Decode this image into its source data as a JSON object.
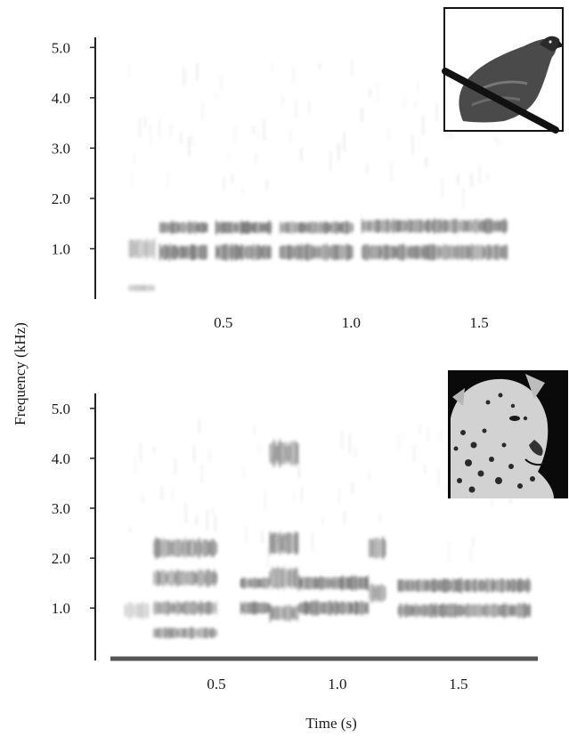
{
  "figure": {
    "ylabel": "Frequency (kHz)",
    "xlabel": "Time (s)"
  },
  "chart_data": [
    {
      "type": "heatmap",
      "title": "",
      "inset_image": "bird-photo",
      "xlabel": "",
      "ylabel": "Frequency (kHz)",
      "xlim": [
        0.0,
        1.75
      ],
      "ylim": [
        0.0,
        5.2
      ],
      "x_ticks": [
        0.5,
        1.0,
        1.5
      ],
      "x_tick_labels": [
        "0.5",
        "1.0",
        "1.5"
      ],
      "y_ticks": [
        1.0,
        2.0,
        3.0,
        4.0,
        5.0
      ],
      "y_tick_labels": [
        "1.0",
        "2.0",
        "3.0",
        "4.0",
        "5.0"
      ],
      "grid": false,
      "segments": [
        {
          "start": 0.13,
          "end": 0.23,
          "intensity": 0.45,
          "bands": [
            {
              "freq": 1.0,
              "width": 0.35
            },
            {
              "freq": 0.22,
              "width": 0.12
            }
          ]
        },
        {
          "start": 0.25,
          "end": 0.44,
          "intensity": 0.9,
          "bands": [
            {
              "freq": 0.93,
              "width": 0.28
            },
            {
              "freq": 1.42,
              "width": 0.22
            }
          ]
        },
        {
          "start": 0.47,
          "end": 0.69,
          "intensity": 0.95,
          "bands": [
            {
              "freq": 0.93,
              "width": 0.28
            },
            {
              "freq": 1.42,
              "width": 0.22
            }
          ]
        },
        {
          "start": 0.72,
          "end": 1.01,
          "intensity": 0.88,
          "bands": [
            {
              "freq": 0.93,
              "width": 0.28
            },
            {
              "freq": 1.42,
              "width": 0.22
            }
          ]
        },
        {
          "start": 1.04,
          "end": 1.61,
          "intensity": 0.85,
          "bands": [
            {
              "freq": 0.93,
              "width": 0.28
            },
            {
              "freq": 1.45,
              "width": 0.25
            }
          ]
        }
      ]
    },
    {
      "type": "heatmap",
      "title": "",
      "inset_image": "leopard-photo",
      "xlabel": "Time (s)",
      "ylabel": "Frequency (kHz)",
      "xlim": [
        0.0,
        1.85
      ],
      "ylim": [
        -0.05,
        5.3
      ],
      "x_ticks": [
        0.5,
        1.0,
        1.5
      ],
      "x_tick_labels": [
        "0.5",
        "1.0",
        "1.5"
      ],
      "y_ticks": [
        1.0,
        2.0,
        3.0,
        4.0,
        5.0
      ],
      "y_tick_labels": [
        "1.0",
        "2.0",
        "3.0",
        "4.0",
        "5.0"
      ],
      "grid": false,
      "segments": [
        {
          "start": 0.12,
          "end": 0.22,
          "intensity": 0.3,
          "bands": [
            {
              "freq": 0.95,
              "width": 0.3
            }
          ]
        },
        {
          "start": 0.24,
          "end": 0.5,
          "intensity": 0.75,
          "bands": [
            {
              "freq": 0.5,
              "width": 0.2
            },
            {
              "freq": 1.0,
              "width": 0.25
            },
            {
              "freq": 1.6,
              "width": 0.3
            },
            {
              "freq": 2.2,
              "width": 0.35
            }
          ]
        },
        {
          "start": 0.6,
          "end": 0.72,
          "intensity": 0.9,
          "bands": [
            {
              "freq": 1.0,
              "width": 0.22
            },
            {
              "freq": 1.5,
              "width": 0.2
            }
          ]
        },
        {
          "start": 0.72,
          "end": 0.84,
          "intensity": 0.75,
          "bands": [
            {
              "freq": 0.9,
              "width": 0.3
            },
            {
              "freq": 1.6,
              "width": 0.4
            },
            {
              "freq": 2.3,
              "width": 0.4
            },
            {
              "freq": 4.1,
              "width": 0.45
            }
          ]
        },
        {
          "start": 0.84,
          "end": 1.13,
          "intensity": 0.92,
          "bands": [
            {
              "freq": 1.0,
              "width": 0.25
            },
            {
              "freq": 1.5,
              "width": 0.25
            }
          ]
        },
        {
          "start": 1.13,
          "end": 1.2,
          "intensity": 0.7,
          "bands": [
            {
              "freq": 1.3,
              "width": 0.35
            },
            {
              "freq": 2.2,
              "width": 0.4
            }
          ]
        },
        {
          "start": 1.25,
          "end": 1.8,
          "intensity": 0.85,
          "bands": [
            {
              "freq": 0.95,
              "width": 0.25
            },
            {
              "freq": 1.45,
              "width": 0.25
            }
          ]
        }
      ]
    }
  ]
}
